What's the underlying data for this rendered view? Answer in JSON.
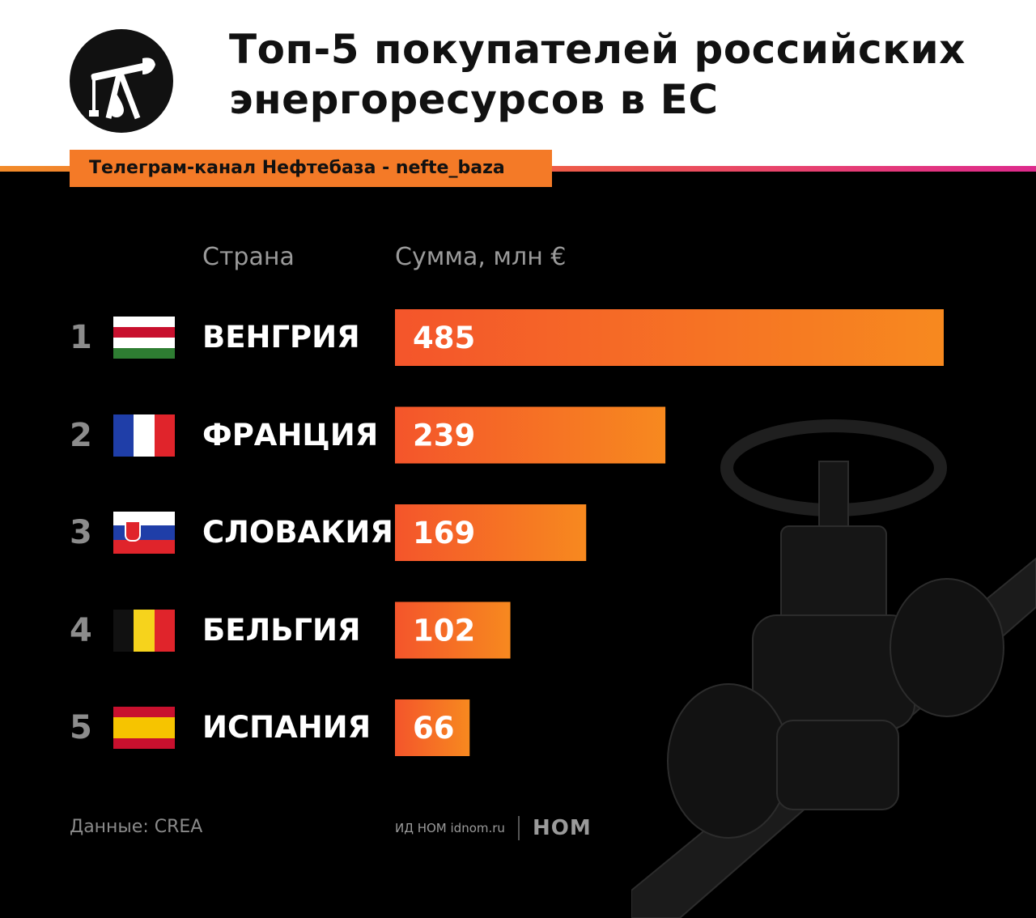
{
  "header": {
    "title_line1": "Топ-5 покупателей российских",
    "title_line2": "энергоресурсов в ЕС",
    "channel_tag": "Телеграм-канал Нефтебаза - nefte_baza",
    "logo_icon": "oil-pump-icon"
  },
  "columns": {
    "country": "Страна",
    "amount": "Сумма, млн €"
  },
  "rows": [
    {
      "rank": "1",
      "country": "ВЕНГРИЯ",
      "flag": [
        "#ffffff",
        "#c8102e",
        "#ffffff",
        "#2e7d32"
      ],
      "flag_icon": "hungary-flag-icon"
    },
    {
      "rank": "2",
      "country": "ФРАНЦИЯ",
      "flag": [
        "#1f3ea8",
        "#ffffff",
        "#e0242b"
      ],
      "flag_icon": "france-flag-icon"
    },
    {
      "rank": "3",
      "country": "СЛОВАКИЯ",
      "flag": [
        "#ffffff",
        "#1f3ea8",
        "#e0242b"
      ],
      "flag_icon": "slovakia-flag-icon"
    },
    {
      "rank": "4",
      "country": "БЕЛЬГИЯ",
      "flag": [
        "#111111",
        "#f6d31c",
        "#e0242b"
      ],
      "flag_icon": "belgium-flag-icon"
    },
    {
      "rank": "5",
      "country": "ИСПАНИЯ",
      "flag": [
        "#c8102e",
        "#f6c400",
        "#c8102e"
      ],
      "flag_icon": "spain-flag-icon"
    }
  ],
  "chart_data": {
    "type": "bar",
    "orientation": "horizontal",
    "categories": [
      "ВЕНГРИЯ",
      "ФРАНЦИЯ",
      "СЛОВАКИЯ",
      "БЕЛЬГИЯ",
      "ИСПАНИЯ"
    ],
    "values": [
      485,
      239,
      169,
      102,
      66
    ],
    "title": "Топ-5 покупателей российских энергоресурсов в ЕС",
    "ylabel": "Сумма, млн €",
    "xlabel": "Страна",
    "xlim": [
      0,
      485
    ],
    "grid": false,
    "bar_gradient": [
      "#f4552b",
      "#f7891f"
    ]
  },
  "footer": {
    "source": "Данные: CREA",
    "publisher": "ИД НОМ idnom.ru",
    "publisher_logo": "НОМ"
  },
  "colors": {
    "accent": "#f47a27",
    "background": "#000000",
    "header_bg": "#ffffff"
  }
}
